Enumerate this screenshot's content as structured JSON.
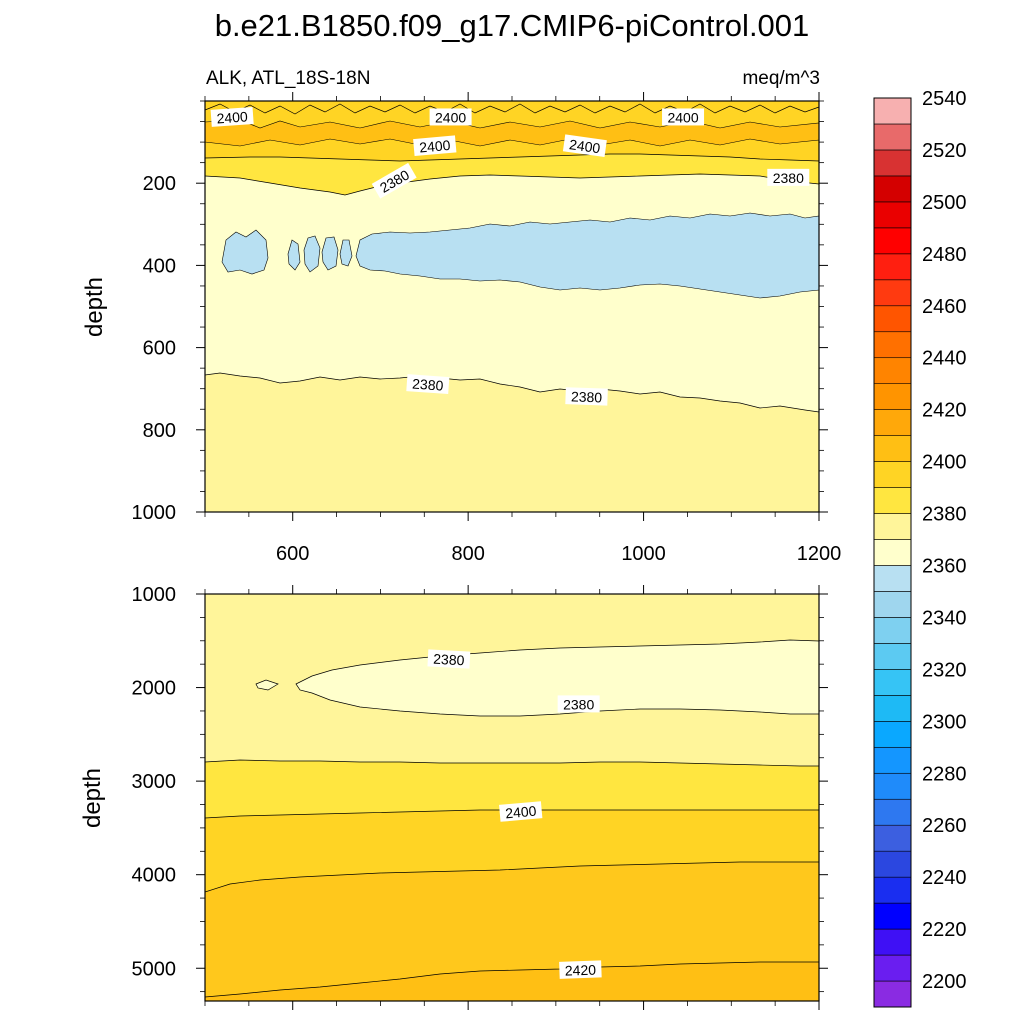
{
  "chart_data": {
    "type": "contour",
    "title": "b.e21.B1850.f09_g17.CMIP6-piControl.001",
    "left_label": "ALK, ATL_18S-18N",
    "units": "meq/m^3",
    "colorbar": {
      "levels": [
        2200,
        2210,
        2220,
        2230,
        2240,
        2250,
        2260,
        2270,
        2280,
        2290,
        2300,
        2310,
        2320,
        2330,
        2340,
        2350,
        2360,
        2370,
        2380,
        2390,
        2400,
        2410,
        2420,
        2430,
        2440,
        2450,
        2460,
        2470,
        2480,
        2490,
        2500,
        2510,
        2520,
        2530,
        2540,
        2550
      ],
      "tick_labels": [
        "2200",
        "2220",
        "2240",
        "2260",
        "2280",
        "2300",
        "2320",
        "2340",
        "2360",
        "2380",
        "2400",
        "2420",
        "2440",
        "2460",
        "2480",
        "2500",
        "2520",
        "2540"
      ],
      "colors": [
        "#8a2be2",
        "#6a1ef0",
        "#3f10f5",
        "#0000ff",
        "#1a2ef0",
        "#2b47e0",
        "#3c5fe0",
        "#2e78f0",
        "#1f8bfa",
        "#1496ff",
        "#0aa8ff",
        "#1ebaf5",
        "#36c4f5",
        "#5ccaf2",
        "#7ed0f0",
        "#9fd6ee",
        "#b8e0f2",
        "#ffffcc",
        "#fff59a",
        "#ffe640",
        "#ffd424",
        "#ffbf14",
        "#ffa80a",
        "#ff9400",
        "#ff8400",
        "#ff7000",
        "#ff5500",
        "#ff3a10",
        "#ff1f10",
        "#ff0000",
        "#ea0000",
        "#d40000",
        "#d83232",
        "#e86a6a",
        "#f7b0b0"
      ]
    },
    "panels": [
      {
        "xlim": [
          500,
          1200
        ],
        "ylim": [
          1000,
          0
        ],
        "ylabel": "depth",
        "xticks": [
          600,
          800,
          1000,
          1200
        ],
        "xtick_labels": [
          "600",
          "800",
          "1000",
          "1200"
        ],
        "yticks": [
          200,
          400,
          600,
          800,
          1000
        ],
        "ytick_labels": [
          "200",
          "400",
          "600",
          "800",
          "1000"
        ],
        "contour_labels": [
          {
            "text": "2400",
            "x": 531,
            "y": 40,
            "rot": -4
          },
          {
            "text": "2400",
            "x": 780,
            "y": 40,
            "rot": 0
          },
          {
            "text": "2400",
            "x": 1045,
            "y": 40,
            "rot": 0
          },
          {
            "text": "2400",
            "x": 762,
            "y": 110,
            "rot": -5
          },
          {
            "text": "2400",
            "x": 933,
            "y": 110,
            "rot": 8
          },
          {
            "text": "2380",
            "x": 716,
            "y": 195,
            "rot": -30
          },
          {
            "text": "2380",
            "x": 1165,
            "y": 187,
            "rot": 0
          },
          {
            "text": "2380",
            "x": 754,
            "y": 690,
            "rot": 4
          },
          {
            "text": "2380",
            "x": 935,
            "y": 720,
            "rot": 2
          }
        ]
      },
      {
        "xlim": [
          500,
          1200
        ],
        "ylim": [
          5350,
          1000
        ],
        "ylabel": "depth",
        "yticks": [
          1000,
          2000,
          3000,
          4000,
          5000
        ],
        "ytick_labels": [
          "1000",
          "2000",
          "3000",
          "4000",
          "5000"
        ],
        "contour_labels": [
          {
            "text": "2380",
            "x": 778,
            "y": 1700,
            "rot": 3
          },
          {
            "text": "2380",
            "x": 926,
            "y": 2180,
            "rot": 0
          },
          {
            "text": "2400",
            "x": 860,
            "y": 3330,
            "rot": -5
          },
          {
            "text": "2420",
            "x": 928,
            "y": 5020,
            "rot": -2
          }
        ]
      }
    ]
  }
}
